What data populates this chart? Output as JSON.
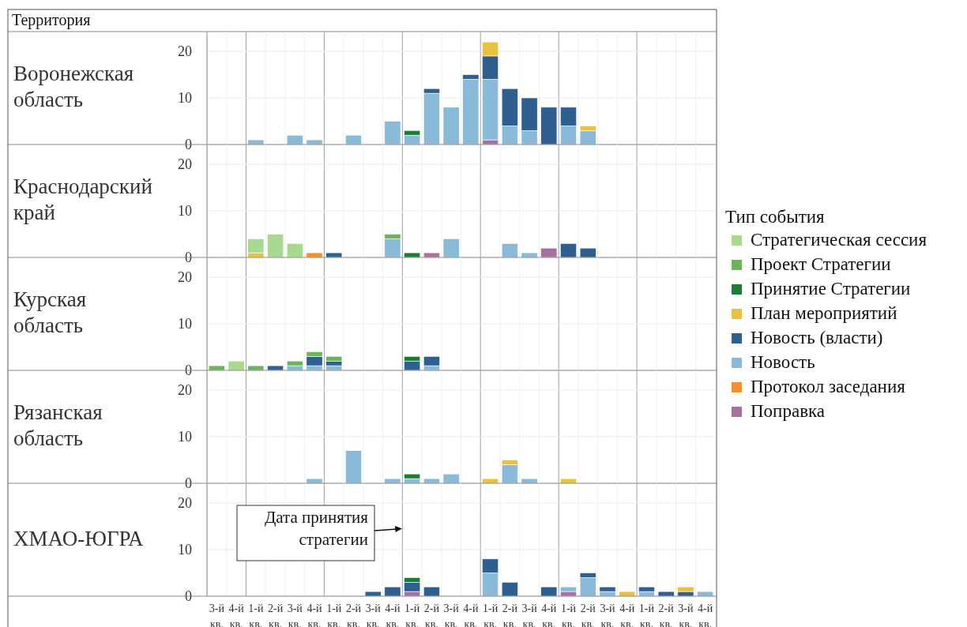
{
  "chart_data": [
    {
      "type": "bar",
      "title": "Воронежская область",
      "stacked": true,
      "legend": "right",
      "legend_title": "Тип события",
      "annotations": [
        "Территория"
      ],
      "tick_labels": "y",
      "grid": "y",
      "ylim": [
        0,
        24
      ],
      "yticks": [
        0,
        10,
        20
      ],
      "categories": [
        null,
        null,
        null,
        null,
        null,
        null,
        null,
        null,
        null,
        null,
        null,
        null,
        null,
        null,
        null,
        null,
        null,
        null,
        null,
        null,
        null,
        null,
        null,
        null,
        null,
        null
      ],
      "series": [
        {
          "name": "Поправка",
          "color": "#a8709e",
          "values": [
            null,
            null,
            null,
            null,
            null,
            null,
            null,
            null,
            null,
            null,
            null,
            null,
            null,
            null,
            1,
            null,
            null,
            null,
            null,
            null,
            null,
            null,
            null,
            null,
            null,
            null
          ]
        },
        {
          "name": "Протокол заседания",
          "color": "#f28e2b",
          "values": [
            null,
            null,
            null,
            null,
            null,
            null,
            null,
            null,
            null,
            null,
            null,
            null,
            null,
            null,
            null,
            null,
            null,
            null,
            null,
            null,
            null,
            null,
            null,
            null,
            null,
            null
          ]
        },
        {
          "name": "Новость",
          "color": "#8bbad9",
          "values": [
            null,
            null,
            1,
            null,
            2,
            1,
            null,
            2,
            null,
            5,
            2,
            11,
            8,
            14,
            13,
            4,
            3,
            null,
            4,
            3,
            null,
            null,
            null,
            null,
            null,
            null
          ]
        },
        {
          "name": "Новость (власти)",
          "color": "#2f5f8f",
          "values": [
            null,
            null,
            null,
            null,
            null,
            null,
            null,
            null,
            null,
            null,
            null,
            1,
            null,
            1,
            5,
            8,
            7,
            8,
            4,
            null,
            null,
            null,
            null,
            null,
            null,
            null
          ]
        },
        {
          "name": "План мероприятий",
          "color": "#e9c140",
          "values": [
            null,
            null,
            null,
            null,
            null,
            null,
            null,
            null,
            null,
            null,
            null,
            null,
            null,
            null,
            3,
            null,
            null,
            null,
            null,
            1,
            null,
            null,
            null,
            null,
            null,
            null
          ]
        },
        {
          "name": "Принятие Стратегии",
          "color": "#1f7a35",
          "values": [
            null,
            null,
            null,
            null,
            null,
            null,
            null,
            null,
            null,
            null,
            1,
            null,
            null,
            null,
            null,
            null,
            null,
            null,
            null,
            null,
            null,
            null,
            null,
            null,
            null,
            null
          ]
        },
        {
          "name": "Проект Стратегии",
          "color": "#6cb35c",
          "values": [
            null,
            null,
            null,
            null,
            null,
            null,
            null,
            null,
            null,
            null,
            null,
            null,
            null,
            null,
            null,
            null,
            null,
            null,
            null,
            null,
            null,
            null,
            null,
            null,
            null,
            null
          ]
        },
        {
          "name": "Стратегическая сессия",
          "color": "#a9d990",
          "values": [
            null,
            null,
            null,
            null,
            null,
            null,
            null,
            null,
            null,
            null,
            null,
            null,
            null,
            null,
            null,
            null,
            null,
            null,
            null,
            null,
            null,
            null,
            null,
            null,
            null,
            null
          ]
        }
      ]
    },
    {
      "type": "bar",
      "title": "Краснодарский край",
      "stacked": true,
      "tick_labels": "y",
      "grid": "y",
      "ylim": [
        0,
        24
      ],
      "yticks": [
        0,
        10,
        20
      ],
      "categories": [
        null,
        null,
        null,
        null,
        null,
        null,
        null,
        null,
        null,
        null,
        null,
        null,
        null,
        null,
        null,
        null,
        null,
        null,
        null,
        null,
        null,
        null,
        null,
        null,
        null,
        null
      ],
      "series": [
        {
          "color": "#a8709e",
          "values": [
            null,
            null,
            null,
            null,
            null,
            null,
            null,
            null,
            null,
            null,
            null,
            1,
            null,
            null,
            null,
            null,
            null,
            2,
            null,
            null,
            null,
            null,
            null,
            null,
            null,
            null
          ]
        },
        {
          "color": "#f28e2b",
          "values": [
            null,
            null,
            null,
            null,
            null,
            1,
            null,
            null,
            null,
            null,
            null,
            null,
            null,
            null,
            null,
            null,
            null,
            null,
            null,
            null,
            null,
            null,
            null,
            null,
            null,
            null
          ]
        },
        {
          "color": "#8bbad9",
          "values": [
            null,
            null,
            null,
            null,
            null,
            null,
            null,
            null,
            null,
            4,
            null,
            null,
            4,
            null,
            null,
            3,
            1,
            null,
            null,
            null,
            null,
            null,
            null,
            null,
            null,
            null
          ]
        },
        {
          "color": "#2f5f8f",
          "values": [
            null,
            null,
            null,
            null,
            null,
            null,
            1,
            null,
            null,
            null,
            null,
            null,
            null,
            null,
            null,
            null,
            null,
            null,
            3,
            2,
            null,
            null,
            null,
            null,
            null,
            null
          ]
        },
        {
          "color": "#e9c140",
          "values": [
            null,
            null,
            1,
            null,
            null,
            null,
            null,
            null,
            null,
            null,
            null,
            null,
            null,
            null,
            null,
            null,
            null,
            null,
            null,
            null,
            null,
            null,
            null,
            null,
            null,
            null
          ]
        },
        {
          "color": "#1f7a35",
          "values": [
            null,
            null,
            null,
            null,
            null,
            null,
            null,
            null,
            null,
            null,
            1,
            null,
            null,
            null,
            null,
            null,
            null,
            null,
            null,
            null,
            null,
            null,
            null,
            null,
            null,
            null
          ]
        },
        {
          "color": "#6cb35c",
          "values": [
            null,
            null,
            null,
            null,
            null,
            null,
            null,
            null,
            null,
            1,
            null,
            null,
            null,
            null,
            null,
            null,
            null,
            null,
            null,
            null,
            null,
            null,
            null,
            null,
            null,
            null
          ]
        },
        {
          "color": "#a9d990",
          "values": [
            null,
            null,
            3,
            5,
            3,
            null,
            null,
            null,
            null,
            null,
            null,
            null,
            null,
            null,
            null,
            null,
            null,
            null,
            null,
            null,
            null,
            null,
            null,
            null,
            null,
            null
          ]
        }
      ]
    },
    {
      "type": "bar",
      "title": "Курская область",
      "stacked": true,
      "tick_labels": "y",
      "grid": "y",
      "ylim": [
        0,
        24
      ],
      "yticks": [
        0,
        10,
        20
      ],
      "categories": [
        null,
        null,
        null,
        null,
        null,
        null,
        null,
        null,
        null,
        null,
        null,
        null,
        null,
        null,
        null,
        null,
        null,
        null,
        null,
        null,
        null,
        null,
        null,
        null,
        null,
        null
      ],
      "series": [
        {
          "color": "#8bbad9",
          "values": [
            null,
            null,
            null,
            null,
            1,
            1,
            1,
            null,
            null,
            null,
            null,
            1,
            null,
            null,
            null,
            null,
            null,
            null,
            null,
            null,
            null,
            null,
            null,
            null,
            null,
            null
          ]
        },
        {
          "color": "#2f5f8f",
          "values": [
            null,
            null,
            null,
            1,
            null,
            2,
            1,
            null,
            null,
            null,
            2,
            2,
            null,
            null,
            null,
            null,
            null,
            null,
            null,
            null,
            null,
            null,
            null,
            null,
            null,
            null
          ]
        },
        {
          "color": "#1f7a35",
          "values": [
            null,
            null,
            null,
            null,
            null,
            null,
            null,
            null,
            null,
            null,
            1,
            null,
            null,
            null,
            null,
            null,
            null,
            null,
            null,
            null,
            null,
            null,
            null,
            null,
            null,
            null
          ]
        },
        {
          "color": "#6cb35c",
          "values": [
            1,
            null,
            1,
            null,
            1,
            1,
            1,
            null,
            null,
            null,
            null,
            null,
            null,
            null,
            null,
            null,
            null,
            null,
            null,
            null,
            null,
            null,
            null,
            null,
            null,
            null
          ]
        },
        {
          "color": "#a9d990",
          "values": [
            null,
            2,
            null,
            null,
            null,
            null,
            null,
            null,
            null,
            null,
            null,
            null,
            null,
            null,
            null,
            null,
            null,
            null,
            null,
            null,
            null,
            null,
            null,
            null,
            null,
            null
          ]
        }
      ]
    },
    {
      "type": "bar",
      "title": "Рязанская область",
      "stacked": true,
      "tick_labels": "y",
      "grid": "y",
      "ylim": [
        0,
        24
      ],
      "yticks": [
        0,
        10,
        20
      ],
      "categories": [
        null,
        null,
        null,
        null,
        null,
        null,
        null,
        null,
        null,
        null,
        null,
        null,
        null,
        null,
        null,
        null,
        null,
        null,
        null,
        null,
        null,
        null,
        null,
        null,
        null,
        null
      ],
      "series": [
        {
          "color": "#8bbad9",
          "values": [
            null,
            null,
            null,
            null,
            null,
            1,
            null,
            7,
            null,
            1,
            1,
            1,
            2,
            null,
            null,
            4,
            1,
            null,
            null,
            null,
            null,
            null,
            null,
            null,
            null,
            null
          ]
        },
        {
          "color": "#e9c140",
          "values": [
            null,
            null,
            null,
            null,
            null,
            null,
            null,
            null,
            null,
            null,
            null,
            null,
            null,
            null,
            1,
            1,
            null,
            null,
            1,
            null,
            null,
            null,
            null,
            null,
            null,
            null
          ]
        },
        {
          "color": "#1f7a35",
          "values": [
            null,
            null,
            null,
            null,
            null,
            null,
            null,
            null,
            null,
            null,
            1,
            null,
            null,
            null,
            null,
            null,
            null,
            null,
            null,
            null,
            null,
            null,
            null,
            null,
            null,
            null
          ]
        }
      ]
    },
    {
      "type": "bar",
      "title": "ХМАО-ЮГРА",
      "stacked": true,
      "grid": "y",
      "ylim": [
        0,
        24
      ],
      "yticks": [
        0,
        10,
        20
      ],
      "annotations": [
        "Дата принятия стратегии"
      ],
      "categories": [
        "3-й кв.",
        "4-й кв.",
        "1-й кв.",
        "2-й кв.",
        "3-й кв.",
        "4-й кв.",
        "1-й кв.",
        "2-й кв.",
        "3-й кв.",
        "4-й кв.",
        "1-й кв.",
        "2-й кв.",
        "3-й кв.",
        "4-й кв.",
        "1-й кв.",
        "2-й кв.",
        "3-й кв.",
        "4-й кв.",
        "1-й кв.",
        "2-й кв.",
        "3-й кв.",
        "4-й кв.",
        "1-й кв.",
        "2-й кв.",
        "3-й кв.",
        "4-й кв."
      ],
      "series": [
        {
          "color": "#a8709e",
          "values": [
            null,
            null,
            null,
            null,
            null,
            null,
            null,
            null,
            null,
            null,
            1,
            null,
            null,
            null,
            null,
            null,
            null,
            null,
            1,
            null,
            null,
            null,
            null,
            null,
            null,
            null
          ]
        },
        {
          "color": "#8bbad9",
          "values": [
            null,
            null,
            null,
            null,
            null,
            null,
            null,
            null,
            null,
            null,
            null,
            null,
            null,
            null,
            5,
            null,
            null,
            null,
            1,
            4,
            1,
            null,
            1,
            null,
            null,
            1
          ]
        },
        {
          "color": "#2f5f8f",
          "values": [
            null,
            null,
            null,
            null,
            null,
            null,
            null,
            null,
            1,
            2,
            2,
            2,
            null,
            null,
            3,
            3,
            null,
            2,
            null,
            1,
            1,
            null,
            1,
            1,
            1,
            null
          ]
        },
        {
          "color": "#e9c140",
          "values": [
            null,
            null,
            null,
            null,
            null,
            null,
            null,
            null,
            null,
            null,
            null,
            null,
            null,
            null,
            null,
            null,
            null,
            null,
            null,
            null,
            null,
            1,
            null,
            null,
            1,
            null
          ]
        },
        {
          "color": "#1f7a35",
          "values": [
            null,
            null,
            null,
            null,
            null,
            null,
            null,
            null,
            null,
            null,
            1,
            null,
            null,
            null,
            null,
            null,
            null,
            null,
            null,
            null,
            null,
            null,
            null,
            null,
            null,
            null
          ]
        }
      ]
    }
  ]
}
